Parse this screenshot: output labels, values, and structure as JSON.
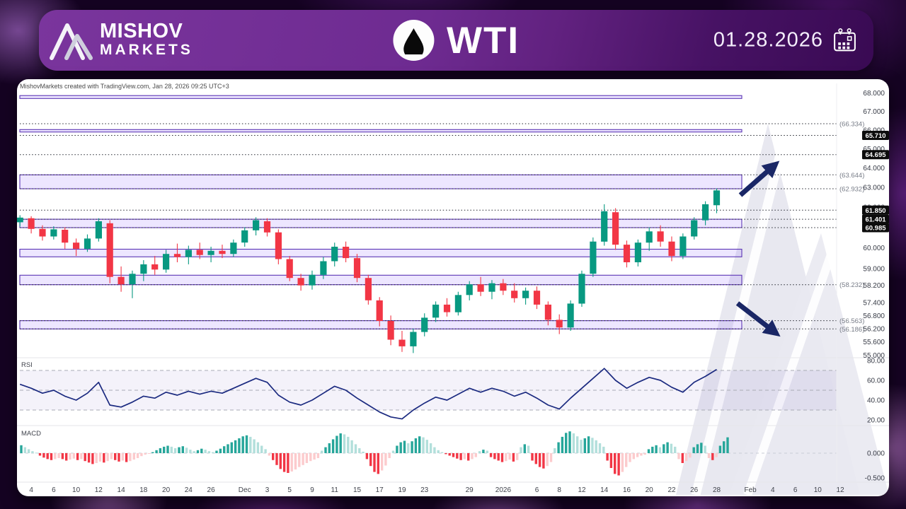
{
  "header": {
    "brand_line1": "MISHOV",
    "brand_line2": "MARKETS",
    "symbol": "WTI",
    "date": "01.28.2026"
  },
  "attribution": "MishovMarkets created with TradingView.com, Jan 28, 2026 09:25 UTC+3",
  "colors": {
    "accent_purple": "#6e2b91",
    "candle_up": "#089981",
    "candle_down": "#f23645",
    "zone_fill": "rgba(124,77,255,0.14)",
    "zone_border": "#5b34b5",
    "level_line": "#23262f",
    "badge_bg": "#0c0c0c",
    "badge_text": "#ffffff",
    "paren_text": "#777c87",
    "axis_text": "#363a45",
    "time_text": "#40434c",
    "rsi_line": "#1b2a80",
    "rsi_guide": "#a9abb5",
    "rsi_band_fill": "rgba(106,70,180,0.07)",
    "macd_up_dark": "#26a69a",
    "macd_up_light": "#b2dfdb",
    "macd_down_dark": "#f23645",
    "macd_down_light": "#fccbcd",
    "arrow": "#1a2766",
    "watermark": "#e4e4ed",
    "separator": "#e6e6ea"
  },
  "chart_data": {
    "type": "candlestick",
    "symbol": "WTI",
    "timeframe_hint": "daily",
    "y_axis": {
      "scale": "log",
      "visible_range": [
        55.0,
        68.0
      ],
      "price_ticks": [
        {
          "label": "68.000",
          "value": 68.0
        },
        {
          "label": "67.000",
          "value": 67.0
        },
        {
          "label": "66.000",
          "value": 66.0
        },
        {
          "label": "65.000",
          "value": 65.0
        },
        {
          "label": "64.000",
          "value": 64.0
        },
        {
          "label": "63.000",
          "value": 63.0
        },
        {
          "label": "62.000",
          "value": 62.0
        },
        {
          "label": "60.000",
          "value": 60.0
        },
        {
          "label": "59.000",
          "value": 59.0
        },
        {
          "label": "58.200",
          "value": 58.2
        },
        {
          "label": "57.400",
          "value": 57.4
        },
        {
          "label": "56.800",
          "value": 56.8
        },
        {
          "label": "56.200",
          "value": 56.2
        },
        {
          "label": "55.600",
          "value": 55.6
        },
        {
          "label": "55.000",
          "value": 55.0
        }
      ]
    },
    "x_axis": {
      "ticks": [
        {
          "label": "4",
          "idx": 1
        },
        {
          "label": "6",
          "idx": 3
        },
        {
          "label": "10",
          "idx": 5
        },
        {
          "label": "12",
          "idx": 7
        },
        {
          "label": "14",
          "idx": 9
        },
        {
          "label": "18",
          "idx": 11
        },
        {
          "label": "20",
          "idx": 13
        },
        {
          "label": "24",
          "idx": 15
        },
        {
          "label": "26",
          "idx": 17
        },
        {
          "label": "Dec",
          "idx": 20
        },
        {
          "label": "3",
          "idx": 22
        },
        {
          "label": "5",
          "idx": 24
        },
        {
          "label": "9",
          "idx": 26
        },
        {
          "label": "11",
          "idx": 28
        },
        {
          "label": "15",
          "idx": 30
        },
        {
          "label": "17",
          "idx": 32
        },
        {
          "label": "19",
          "idx": 34
        },
        {
          "label": "23",
          "idx": 36
        },
        {
          "label": "29",
          "idx": 40
        },
        {
          "label": "2026",
          "idx": 43
        },
        {
          "label": "6",
          "idx": 46
        },
        {
          "label": "8",
          "idx": 48
        },
        {
          "label": "12",
          "idx": 50
        },
        {
          "label": "14",
          "idx": 52
        },
        {
          "label": "16",
          "idx": 54
        },
        {
          "label": "20",
          "idx": 56
        },
        {
          "label": "22",
          "idx": 58
        },
        {
          "label": "26",
          "idx": 60
        },
        {
          "label": "28",
          "idx": 62
        },
        {
          "label": "Feb",
          "idx": 65
        },
        {
          "label": "4",
          "idx": 67
        },
        {
          "label": "6",
          "idx": 69
        },
        {
          "label": "10",
          "idx": 71
        },
        {
          "label": "12",
          "idx": 73
        }
      ]
    },
    "zones": [
      {
        "top": 67.86,
        "bottom": 67.7
      },
      {
        "top": 66.02,
        "bottom": 65.89
      },
      {
        "top": 63.644,
        "bottom": 62.932
      },
      {
        "top": 61.401,
        "bottom": 60.985
      },
      {
        "top": 59.93,
        "bottom": 59.56
      },
      {
        "top": 58.68,
        "bottom": 58.232
      },
      {
        "top": 56.563,
        "bottom": 56.186
      }
    ],
    "levels": [
      {
        "price": 66.334,
        "label": "(66.334)",
        "style": "paren"
      },
      {
        "price": 65.71,
        "label": "65.710",
        "style": "badge"
      },
      {
        "price": 64.695,
        "label": "64.695",
        "style": "badge"
      },
      {
        "price": 63.644,
        "label": "(63.644)",
        "style": "paren"
      },
      {
        "price": 62.932,
        "label": "(62.932)",
        "style": "paren"
      },
      {
        "price": 61.85,
        "label": "61.850",
        "style": "badge"
      },
      {
        "price": 61.401,
        "label": "61.401",
        "style": "badge"
      },
      {
        "price": 60.985,
        "label": "60.985",
        "style": "badge"
      },
      {
        "price": 58.232,
        "label": "(58.232)",
        "style": "paren"
      },
      {
        "price": 56.563,
        "label": "(56.563)",
        "style": "paren"
      },
      {
        "price": 56.186,
        "label": "(56.186)",
        "style": "paren"
      }
    ],
    "candles": [
      [
        61.25,
        61.6,
        61.05,
        61.48
      ],
      [
        61.45,
        61.55,
        60.7,
        60.92
      ],
      [
        60.92,
        61.1,
        60.35,
        60.55
      ],
      [
        60.55,
        61.05,
        60.4,
        60.9
      ],
      [
        60.88,
        61.0,
        59.95,
        60.25
      ],
      [
        60.25,
        60.45,
        59.6,
        59.95
      ],
      [
        59.95,
        60.65,
        59.8,
        60.45
      ],
      [
        60.45,
        61.45,
        60.3,
        61.3
      ],
      [
        61.2,
        61.35,
        58.3,
        58.6
      ],
      [
        58.6,
        59.1,
        57.9,
        58.25
      ],
      [
        58.25,
        58.9,
        57.6,
        58.75
      ],
      [
        58.75,
        59.4,
        58.4,
        59.2
      ],
      [
        59.2,
        59.6,
        58.7,
        58.95
      ],
      [
        58.95,
        59.9,
        58.8,
        59.7
      ],
      [
        59.7,
        60.2,
        59.3,
        59.55
      ],
      [
        59.55,
        60.1,
        59.2,
        59.9
      ],
      [
        59.9,
        60.25,
        59.45,
        59.65
      ],
      [
        59.65,
        60.05,
        59.3,
        59.85
      ],
      [
        59.85,
        60.15,
        59.5,
        59.7
      ],
      [
        59.7,
        60.4,
        59.55,
        60.25
      ],
      [
        60.25,
        61.0,
        60.05,
        60.85
      ],
      [
        60.85,
        61.5,
        60.6,
        61.35
      ],
      [
        61.3,
        61.45,
        60.55,
        60.75
      ],
      [
        60.75,
        60.9,
        59.2,
        59.45
      ],
      [
        59.45,
        59.6,
        58.4,
        58.55
      ],
      [
        58.55,
        58.75,
        57.95,
        58.2
      ],
      [
        58.2,
        58.9,
        58.0,
        58.7
      ],
      [
        58.7,
        59.55,
        58.5,
        59.35
      ],
      [
        59.35,
        60.25,
        59.1,
        60.05
      ],
      [
        60.05,
        60.3,
        59.3,
        59.5
      ],
      [
        59.5,
        59.7,
        58.35,
        58.55
      ],
      [
        58.55,
        58.7,
        57.3,
        57.5
      ],
      [
        57.5,
        57.65,
        56.3,
        56.55
      ],
      [
        56.55,
        56.8,
        55.45,
        55.7
      ],
      [
        55.7,
        56.1,
        55.15,
        55.4
      ],
      [
        55.4,
        56.2,
        55.1,
        56.05
      ],
      [
        56.05,
        56.9,
        55.85,
        56.7
      ],
      [
        56.7,
        57.45,
        56.5,
        57.3
      ],
      [
        57.3,
        57.6,
        56.75,
        56.95
      ],
      [
        56.95,
        57.9,
        56.8,
        57.75
      ],
      [
        57.75,
        58.4,
        57.5,
        58.25
      ],
      [
        58.25,
        58.6,
        57.7,
        57.9
      ],
      [
        57.9,
        58.45,
        57.55,
        58.3
      ],
      [
        58.3,
        58.5,
        57.75,
        57.95
      ],
      [
        57.95,
        58.3,
        57.4,
        57.6
      ],
      [
        57.6,
        58.1,
        57.3,
        57.95
      ],
      [
        57.95,
        58.15,
        57.1,
        57.3
      ],
      [
        57.3,
        57.45,
        56.35,
        56.6
      ],
      [
        56.6,
        56.85,
        55.95,
        56.25
      ],
      [
        56.25,
        57.5,
        56.1,
        57.35
      ],
      [
        57.35,
        58.9,
        57.2,
        58.75
      ],
      [
        58.75,
        60.5,
        58.6,
        60.3
      ],
      [
        60.3,
        62.15,
        60.1,
        61.8
      ],
      [
        61.75,
        61.95,
        59.9,
        60.15
      ],
      [
        60.15,
        60.35,
        59.05,
        59.3
      ],
      [
        59.3,
        60.4,
        59.1,
        60.25
      ],
      [
        60.25,
        61.0,
        59.85,
        60.8
      ],
      [
        60.8,
        61.1,
        60.05,
        60.3
      ],
      [
        60.3,
        60.55,
        59.35,
        59.6
      ],
      [
        59.6,
        60.7,
        59.45,
        60.55
      ],
      [
        60.55,
        61.5,
        60.4,
        61.35
      ],
      [
        61.35,
        62.3,
        61.1,
        62.15
      ],
      [
        62.1,
        62.95,
        61.7,
        62.85
      ]
    ],
    "indicators": {
      "rsi": {
        "label": "RSI",
        "ticks": [
          {
            "label": "80.00",
            "value": 80
          },
          {
            "label": "60.00",
            "value": 60
          },
          {
            "label": "40.00",
            "value": 40
          },
          {
            "label": "20.00",
            "value": 20
          }
        ],
        "guides": [
          70,
          50,
          30
        ],
        "band": [
          30,
          70
        ],
        "values": [
          56,
          52,
          47,
          50,
          44,
          40,
          47,
          58,
          35,
          33,
          38,
          44,
          42,
          48,
          45,
          49,
          46,
          49,
          47,
          52,
          57,
          62,
          58,
          45,
          38,
          35,
          40,
          47,
          54,
          50,
          42,
          35,
          28,
          23,
          21,
          30,
          37,
          43,
          40,
          46,
          52,
          48,
          52,
          49,
          44,
          48,
          42,
          35,
          31,
          42,
          52,
          62,
          72,
          60,
          52,
          58,
          63,
          60,
          53,
          48,
          58,
          64,
          71
        ]
      },
      "macd": {
        "label": "MACD",
        "ticks": [
          {
            "label": "0.000",
            "value": 0
          },
          {
            "label": "-0.500",
            "value": -0.5
          }
        ],
        "histogram": [
          0.16,
          0.12,
          0.08,
          0.04,
          0.01,
          -0.05,
          -0.09,
          -0.12,
          -0.14,
          -0.12,
          -0.1,
          -0.12,
          -0.15,
          -0.13,
          -0.11,
          -0.14,
          -0.12,
          -0.16,
          -0.19,
          -0.22,
          -0.2,
          -0.17,
          -0.19,
          -0.16,
          -0.12,
          -0.14,
          -0.17,
          -0.15,
          -0.18,
          -0.16,
          -0.13,
          -0.1,
          -0.06,
          -0.03,
          -0.01,
          0.02,
          0.06,
          0.1,
          0.13,
          0.15,
          0.13,
          0.1,
          0.12,
          0.14,
          0.11,
          0.07,
          0.04,
          0.06,
          0.09,
          0.07,
          0.04,
          0.02,
          0.05,
          0.09,
          0.14,
          0.18,
          0.22,
          0.26,
          0.3,
          0.34,
          0.36,
          0.33,
          0.28,
          0.22,
          0.15,
          0.08,
          -0.05,
          -0.14,
          -0.24,
          -0.32,
          -0.38,
          -0.4,
          -0.37,
          -0.33,
          -0.28,
          -0.24,
          -0.2,
          -0.16,
          -0.13,
          -0.1,
          0.05,
          0.12,
          0.2,
          0.28,
          0.35,
          0.4,
          0.38,
          0.33,
          0.26,
          0.18,
          0.1,
          0.03,
          -0.12,
          -0.26,
          -0.38,
          -0.42,
          -0.35,
          -0.25,
          -0.1,
          0.05,
          0.15,
          0.22,
          0.25,
          0.2,
          0.24,
          0.3,
          0.34,
          0.32,
          0.27,
          0.2,
          0.12,
          0.06,
          0.02,
          -0.02,
          -0.05,
          -0.08,
          -0.11,
          -0.14,
          -0.12,
          -0.15,
          -0.12,
          -0.08,
          0.04,
          0.07,
          0.05,
          -0.08,
          -0.12,
          -0.15,
          -0.18,
          -0.16,
          -0.13,
          -0.17,
          -0.14,
          0.12,
          0.18,
          0.15,
          -0.15,
          -0.22,
          -0.28,
          -0.31,
          -0.26,
          -0.18,
          0.1,
          0.22,
          0.33,
          0.41,
          0.44,
          0.4,
          0.34,
          0.27,
          0.3,
          0.34,
          0.31,
          0.26,
          0.2,
          0.13,
          -0.15,
          -0.3,
          -0.42,
          -0.45,
          -0.38,
          -0.28,
          -0.18,
          -0.12,
          -0.08,
          -0.05,
          -0.03,
          0.08,
          0.13,
          0.16,
          0.12,
          0.18,
          0.22,
          0.19,
          0.13,
          -0.12,
          -0.2,
          -0.16,
          -0.09,
          0.12,
          0.18,
          0.21,
          0.15,
          -0.1,
          -0.14,
          -0.08,
          0.15,
          0.24,
          0.32
        ]
      }
    },
    "annotations": {
      "arrows": [
        {
          "direction": "up-right"
        },
        {
          "direction": "down-right"
        }
      ]
    }
  }
}
